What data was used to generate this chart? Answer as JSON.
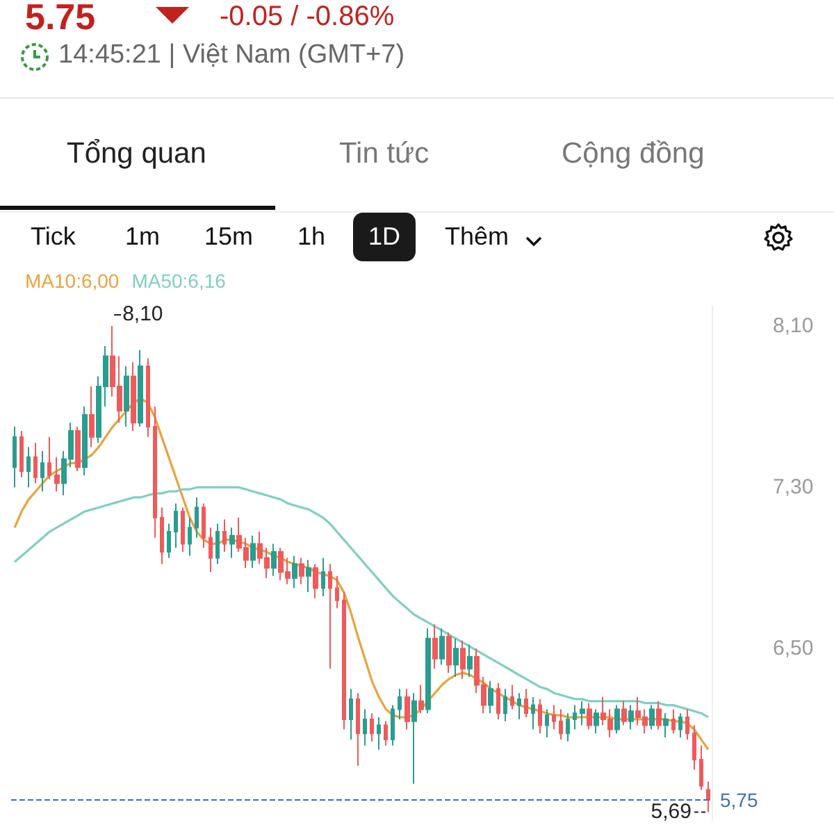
{
  "chart_data": {
    "type": "candlestick",
    "title": "5.75",
    "subtitle": "-0.05 / -0.86%",
    "annotations": [
      "14:45:21 | Việt Nam (GMT+7)",
      "Tổng quan",
      "Tin tức",
      "Cộng đồng",
      "Tick",
      "1m",
      "15m",
      "1h",
      "1D",
      "Thêm",
      "8,10",
      "5,69"
    ],
    "categories": [
      null,
      null,
      null,
      null,
      null,
      null,
      null,
      null,
      null,
      null,
      null,
      null,
      null,
      null,
      null,
      null,
      null,
      null,
      null,
      null,
      null,
      null,
      null,
      null,
      null,
      null,
      null,
      null,
      null,
      null,
      null,
      null,
      null,
      null,
      null,
      null,
      null,
      null,
      null,
      null,
      null,
      null,
      null,
      null,
      null,
      null,
      null,
      null,
      null,
      null,
      null,
      null,
      null,
      null,
      null,
      null,
      null,
      null,
      null,
      null,
      null,
      null,
      null,
      null,
      null,
      null,
      null,
      null,
      null,
      null,
      null,
      null,
      null,
      null,
      null,
      null,
      null,
      null,
      null,
      null,
      null,
      null,
      null,
      null,
      null,
      null,
      null,
      null,
      null,
      null,
      null,
      null,
      null,
      null,
      null,
      null,
      null,
      null,
      null,
      null
    ],
    "ohlc": [
      [
        7.4,
        7.6,
        7.3,
        7.55
      ],
      [
        7.55,
        7.58,
        7.35,
        7.38
      ],
      [
        7.38,
        7.5,
        7.3,
        7.45
      ],
      [
        7.45,
        7.52,
        7.32,
        7.35
      ],
      [
        7.35,
        7.48,
        7.28,
        7.42
      ],
      [
        7.42,
        7.55,
        7.34,
        7.36
      ],
      [
        7.36,
        7.45,
        7.28,
        7.32
      ],
      [
        7.32,
        7.48,
        7.26,
        7.44
      ],
      [
        7.44,
        7.62,
        7.4,
        7.58
      ],
      [
        7.58,
        7.6,
        7.38,
        7.4
      ],
      [
        7.4,
        7.7,
        7.36,
        7.66
      ],
      [
        7.66,
        7.8,
        7.5,
        7.55
      ],
      [
        7.55,
        7.85,
        7.52,
        7.8
      ],
      [
        7.8,
        8.0,
        7.7,
        7.95
      ],
      [
        7.95,
        8.1,
        7.75,
        7.8
      ],
      [
        7.8,
        7.95,
        7.62,
        7.68
      ],
      [
        7.68,
        7.9,
        7.6,
        7.85
      ],
      [
        7.85,
        7.92,
        7.58,
        7.62
      ],
      [
        7.62,
        7.98,
        7.6,
        7.9
      ],
      [
        7.9,
        7.94,
        7.55,
        7.6
      ],
      [
        7.6,
        7.7,
        7.05,
        7.15
      ],
      [
        7.15,
        7.2,
        6.92,
        6.98
      ],
      [
        6.98,
        7.12,
        6.95,
        7.08
      ],
      [
        7.08,
        7.22,
        7.0,
        7.18
      ],
      [
        7.18,
        7.2,
        6.98,
        7.02
      ],
      [
        7.02,
        7.15,
        6.96,
        7.1
      ],
      [
        7.1,
        7.25,
        7.05,
        7.2
      ],
      [
        7.2,
        7.22,
        7.0,
        7.05
      ],
      [
        7.05,
        7.1,
        6.88,
        6.95
      ],
      [
        6.95,
        7.12,
        6.92,
        7.08
      ],
      [
        7.08,
        7.14,
        6.98,
        7.02
      ],
      [
        7.02,
        7.1,
        6.95,
        7.06
      ],
      [
        7.06,
        7.15,
        6.98,
        7.0
      ],
      [
        7.0,
        7.05,
        6.9,
        6.94
      ],
      [
        6.94,
        7.06,
        6.9,
        7.02
      ],
      [
        7.02,
        7.08,
        6.92,
        6.95
      ],
      [
        6.95,
        7.0,
        6.85,
        6.9
      ],
      [
        6.9,
        7.02,
        6.86,
        6.98
      ],
      [
        6.98,
        7.0,
        6.84,
        6.88
      ],
      [
        6.88,
        6.95,
        6.82,
        6.85
      ],
      [
        6.85,
        6.96,
        6.8,
        6.92
      ],
      [
        6.92,
        6.95,
        6.82,
        6.86
      ],
      [
        6.86,
        6.94,
        6.78,
        6.9
      ],
      [
        6.9,
        6.92,
        6.75,
        6.8
      ],
      [
        6.8,
        6.95,
        6.76,
        6.88
      ],
      [
        6.88,
        6.92,
        6.4,
        6.8
      ],
      [
        6.8,
        6.86,
        6.7,
        6.74
      ],
      [
        6.74,
        6.78,
        6.1,
        6.15
      ],
      [
        6.15,
        6.3,
        6.05,
        6.25
      ],
      [
        6.25,
        6.28,
        5.92,
        6.08
      ],
      [
        6.08,
        6.2,
        6.02,
        6.15
      ],
      [
        6.15,
        6.18,
        6.04,
        6.08
      ],
      [
        6.08,
        6.16,
        6.0,
        6.12
      ],
      [
        6.12,
        6.14,
        6.02,
        6.05
      ],
      [
        6.05,
        6.22,
        6.02,
        6.2
      ],
      [
        6.2,
        6.3,
        6.15,
        6.26
      ],
      [
        6.26,
        6.3,
        6.1,
        6.14
      ],
      [
        6.14,
        6.28,
        5.83,
        6.24
      ],
      [
        6.24,
        6.32,
        6.18,
        6.2
      ],
      [
        6.2,
        6.6,
        6.18,
        6.55
      ],
      [
        6.55,
        6.62,
        6.4,
        6.45
      ],
      [
        6.45,
        6.6,
        6.42,
        6.56
      ],
      [
        6.56,
        6.58,
        6.38,
        6.42
      ],
      [
        6.42,
        6.55,
        6.36,
        6.5
      ],
      [
        6.5,
        6.54,
        6.35,
        6.4
      ],
      [
        6.4,
        6.52,
        6.36,
        6.46
      ],
      [
        6.46,
        6.5,
        6.28,
        6.32
      ],
      [
        6.32,
        6.36,
        6.18,
        6.22
      ],
      [
        6.22,
        6.34,
        6.18,
        6.3
      ],
      [
        6.3,
        6.33,
        6.15,
        6.18
      ],
      [
        6.18,
        6.3,
        6.14,
        6.26
      ],
      [
        6.26,
        6.32,
        6.2,
        6.22
      ],
      [
        6.22,
        6.28,
        6.15,
        6.25
      ],
      [
        6.25,
        6.3,
        6.16,
        6.18
      ],
      [
        6.18,
        6.26,
        6.1,
        6.22
      ],
      [
        6.22,
        6.25,
        6.08,
        6.12
      ],
      [
        6.12,
        6.2,
        6.06,
        6.17
      ],
      [
        6.17,
        6.22,
        6.1,
        6.14
      ],
      [
        6.14,
        6.2,
        6.05,
        6.08
      ],
      [
        6.08,
        6.18,
        6.04,
        6.15
      ],
      [
        6.15,
        6.22,
        6.1,
        6.18
      ],
      [
        6.18,
        6.24,
        6.12,
        6.2
      ],
      [
        6.2,
        6.23,
        6.1,
        6.12
      ],
      [
        6.12,
        6.2,
        6.08,
        6.18
      ],
      [
        6.18,
        6.26,
        6.12,
        6.15
      ],
      [
        6.15,
        6.2,
        6.06,
        6.1
      ],
      [
        6.1,
        6.22,
        6.08,
        6.2
      ],
      [
        6.2,
        6.24,
        6.12,
        6.14
      ],
      [
        6.14,
        6.22,
        6.1,
        6.19
      ],
      [
        6.19,
        6.26,
        6.12,
        6.16
      ],
      [
        6.16,
        6.2,
        6.08,
        6.12
      ],
      [
        6.12,
        6.22,
        6.1,
        6.2
      ],
      [
        6.2,
        6.24,
        6.1,
        6.12
      ],
      [
        6.12,
        6.18,
        6.06,
        6.15
      ],
      [
        6.15,
        6.2,
        6.08,
        6.1
      ],
      [
        6.1,
        6.18,
        6.06,
        6.16
      ],
      [
        6.16,
        6.2,
        6.05,
        6.08
      ],
      [
        6.08,
        6.12,
        5.9,
        5.95
      ],
      [
        5.95,
        6.02,
        5.8,
        5.82
      ],
      [
        5.8,
        5.84,
        5.69,
        5.75
      ]
    ],
    "series": [
      {
        "name": "MA10:6,00",
        "type": "line",
        "color": "#e8a33d",
        "values": [
          7.1,
          7.18,
          7.24,
          7.28,
          7.32,
          7.36,
          7.38,
          7.4,
          7.42,
          7.42,
          7.44,
          7.46,
          7.5,
          7.55,
          7.6,
          7.64,
          7.68,
          7.72,
          7.74,
          7.72,
          7.65,
          7.55,
          7.45,
          7.35,
          7.25,
          7.15,
          7.08,
          7.04,
          7.02,
          7.02,
          7.04,
          7.04,
          7.03,
          7.02,
          7.0,
          6.99,
          6.98,
          6.96,
          6.95,
          6.93,
          6.92,
          6.91,
          6.9,
          6.88,
          6.87,
          6.86,
          6.84,
          6.78,
          6.68,
          6.56,
          6.45,
          6.34,
          6.26,
          6.2,
          6.17,
          6.16,
          6.16,
          6.17,
          6.2,
          6.24,
          6.28,
          6.32,
          6.35,
          6.37,
          6.38,
          6.37,
          6.35,
          6.33,
          6.3,
          6.28,
          6.26,
          6.24,
          6.22,
          6.21,
          6.2,
          6.19,
          6.18,
          6.17,
          6.17,
          6.16,
          6.16,
          6.16,
          6.16,
          6.16,
          6.16,
          6.16,
          6.15,
          6.15,
          6.15,
          6.15,
          6.15,
          6.15,
          6.15,
          6.15,
          6.14,
          6.14,
          6.13,
          6.1,
          6.05,
          6.0
        ]
      },
      {
        "name": "MA50:6,16",
        "type": "line",
        "color": "#7fcfc0",
        "values": [
          6.93,
          6.96,
          6.99,
          7.02,
          7.05,
          7.08,
          7.1,
          7.12,
          7.14,
          7.16,
          7.18,
          7.19,
          7.2,
          7.21,
          7.22,
          7.23,
          7.24,
          7.25,
          7.25,
          7.26,
          7.27,
          7.27,
          7.28,
          7.28,
          7.29,
          7.29,
          7.3,
          7.3,
          7.3,
          7.3,
          7.3,
          7.3,
          7.3,
          7.29,
          7.28,
          7.27,
          7.26,
          7.25,
          7.24,
          7.22,
          7.21,
          7.2,
          7.19,
          7.17,
          7.15,
          7.12,
          7.08,
          7.04,
          7.0,
          6.96,
          6.92,
          6.88,
          6.84,
          6.8,
          6.76,
          6.73,
          6.7,
          6.67,
          6.65,
          6.63,
          6.61,
          6.59,
          6.57,
          6.55,
          6.53,
          6.51,
          6.49,
          6.47,
          6.45,
          6.43,
          6.41,
          6.39,
          6.37,
          6.35,
          6.33,
          6.31,
          6.3,
          6.28,
          6.27,
          6.26,
          6.25,
          6.25,
          6.24,
          6.24,
          6.24,
          6.24,
          6.24,
          6.24,
          6.24,
          6.24,
          6.23,
          6.23,
          6.23,
          6.22,
          6.22,
          6.21,
          6.2,
          6.19,
          6.18,
          6.16
        ]
      }
    ],
    "ref_lines": [
      {
        "axis": "y",
        "value": 5.75,
        "label": "5,75",
        "color": "#3b6fb6",
        "line_style": "dashed"
      }
    ],
    "ylim": [
      5.65,
      8.2
    ],
    "yticks": [
      {
        "value": 6.5,
        "label": "6,50"
      },
      {
        "value": 7.3,
        "label": "7,30"
      },
      {
        "value": 8.1,
        "label": "8,10"
      }
    ],
    "legend": "top left",
    "tick_labels": "y"
  }
}
